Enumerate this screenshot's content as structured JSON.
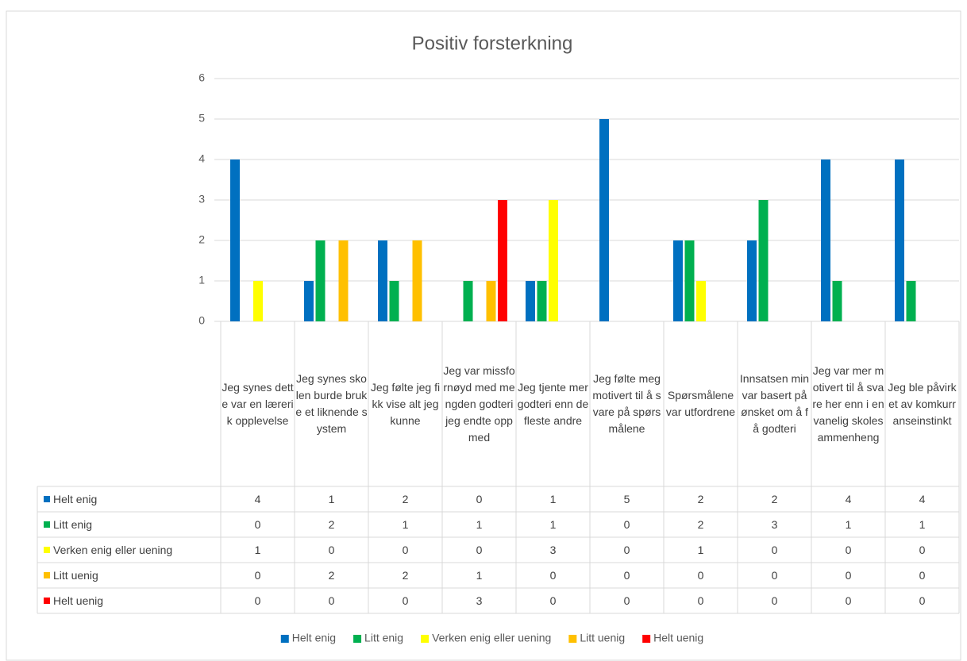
{
  "chart_data": {
    "type": "bar",
    "title": "Positiv forsterkning",
    "categories": [
      "Jeg synes dette var en lærerik opplevelse",
      "Jeg synes skolen burde bruke et liknende system",
      "Jeg følte jeg fikk vise alt jeg kunne",
      "Jeg var missfornøyd med mengden godteri jeg endte opp med",
      "Jeg tjente mer godteri enn de fleste andre",
      "Jeg følte meg motivert til å svare på spørsmålene",
      "Spørsmålene var utfordrene",
      "Innsatsen min var basert på ønsket om å få godteri",
      "Jeg var mer motivert til å svare her enn i en vanelig skolesammenheng",
      "Jeg ble påvirket av komkurranseinstinkt"
    ],
    "series": [
      {
        "name": "Helt enig",
        "color": "#0070c0",
        "values": [
          4,
          1,
          2,
          0,
          1,
          5,
          2,
          2,
          4,
          4
        ]
      },
      {
        "name": "Litt enig",
        "color": "#00b050",
        "values": [
          0,
          2,
          1,
          1,
          1,
          0,
          2,
          3,
          1,
          1
        ]
      },
      {
        "name": "Verken enig eller uening",
        "color": "#ffff00",
        "values": [
          1,
          0,
          0,
          0,
          3,
          0,
          1,
          0,
          0,
          0
        ]
      },
      {
        "name": "Litt uenig",
        "color": "#ffc000",
        "values": [
          0,
          2,
          2,
          1,
          0,
          0,
          0,
          0,
          0,
          0
        ]
      },
      {
        "name": "Helt uenig",
        "color": "#ff0000",
        "values": [
          0,
          0,
          0,
          3,
          0,
          0,
          0,
          0,
          0,
          0
        ]
      }
    ],
    "ylim": [
      0,
      6
    ],
    "yticks": [
      0,
      1,
      2,
      3,
      4,
      5,
      6
    ],
    "grid": true,
    "legend": "bottom"
  }
}
